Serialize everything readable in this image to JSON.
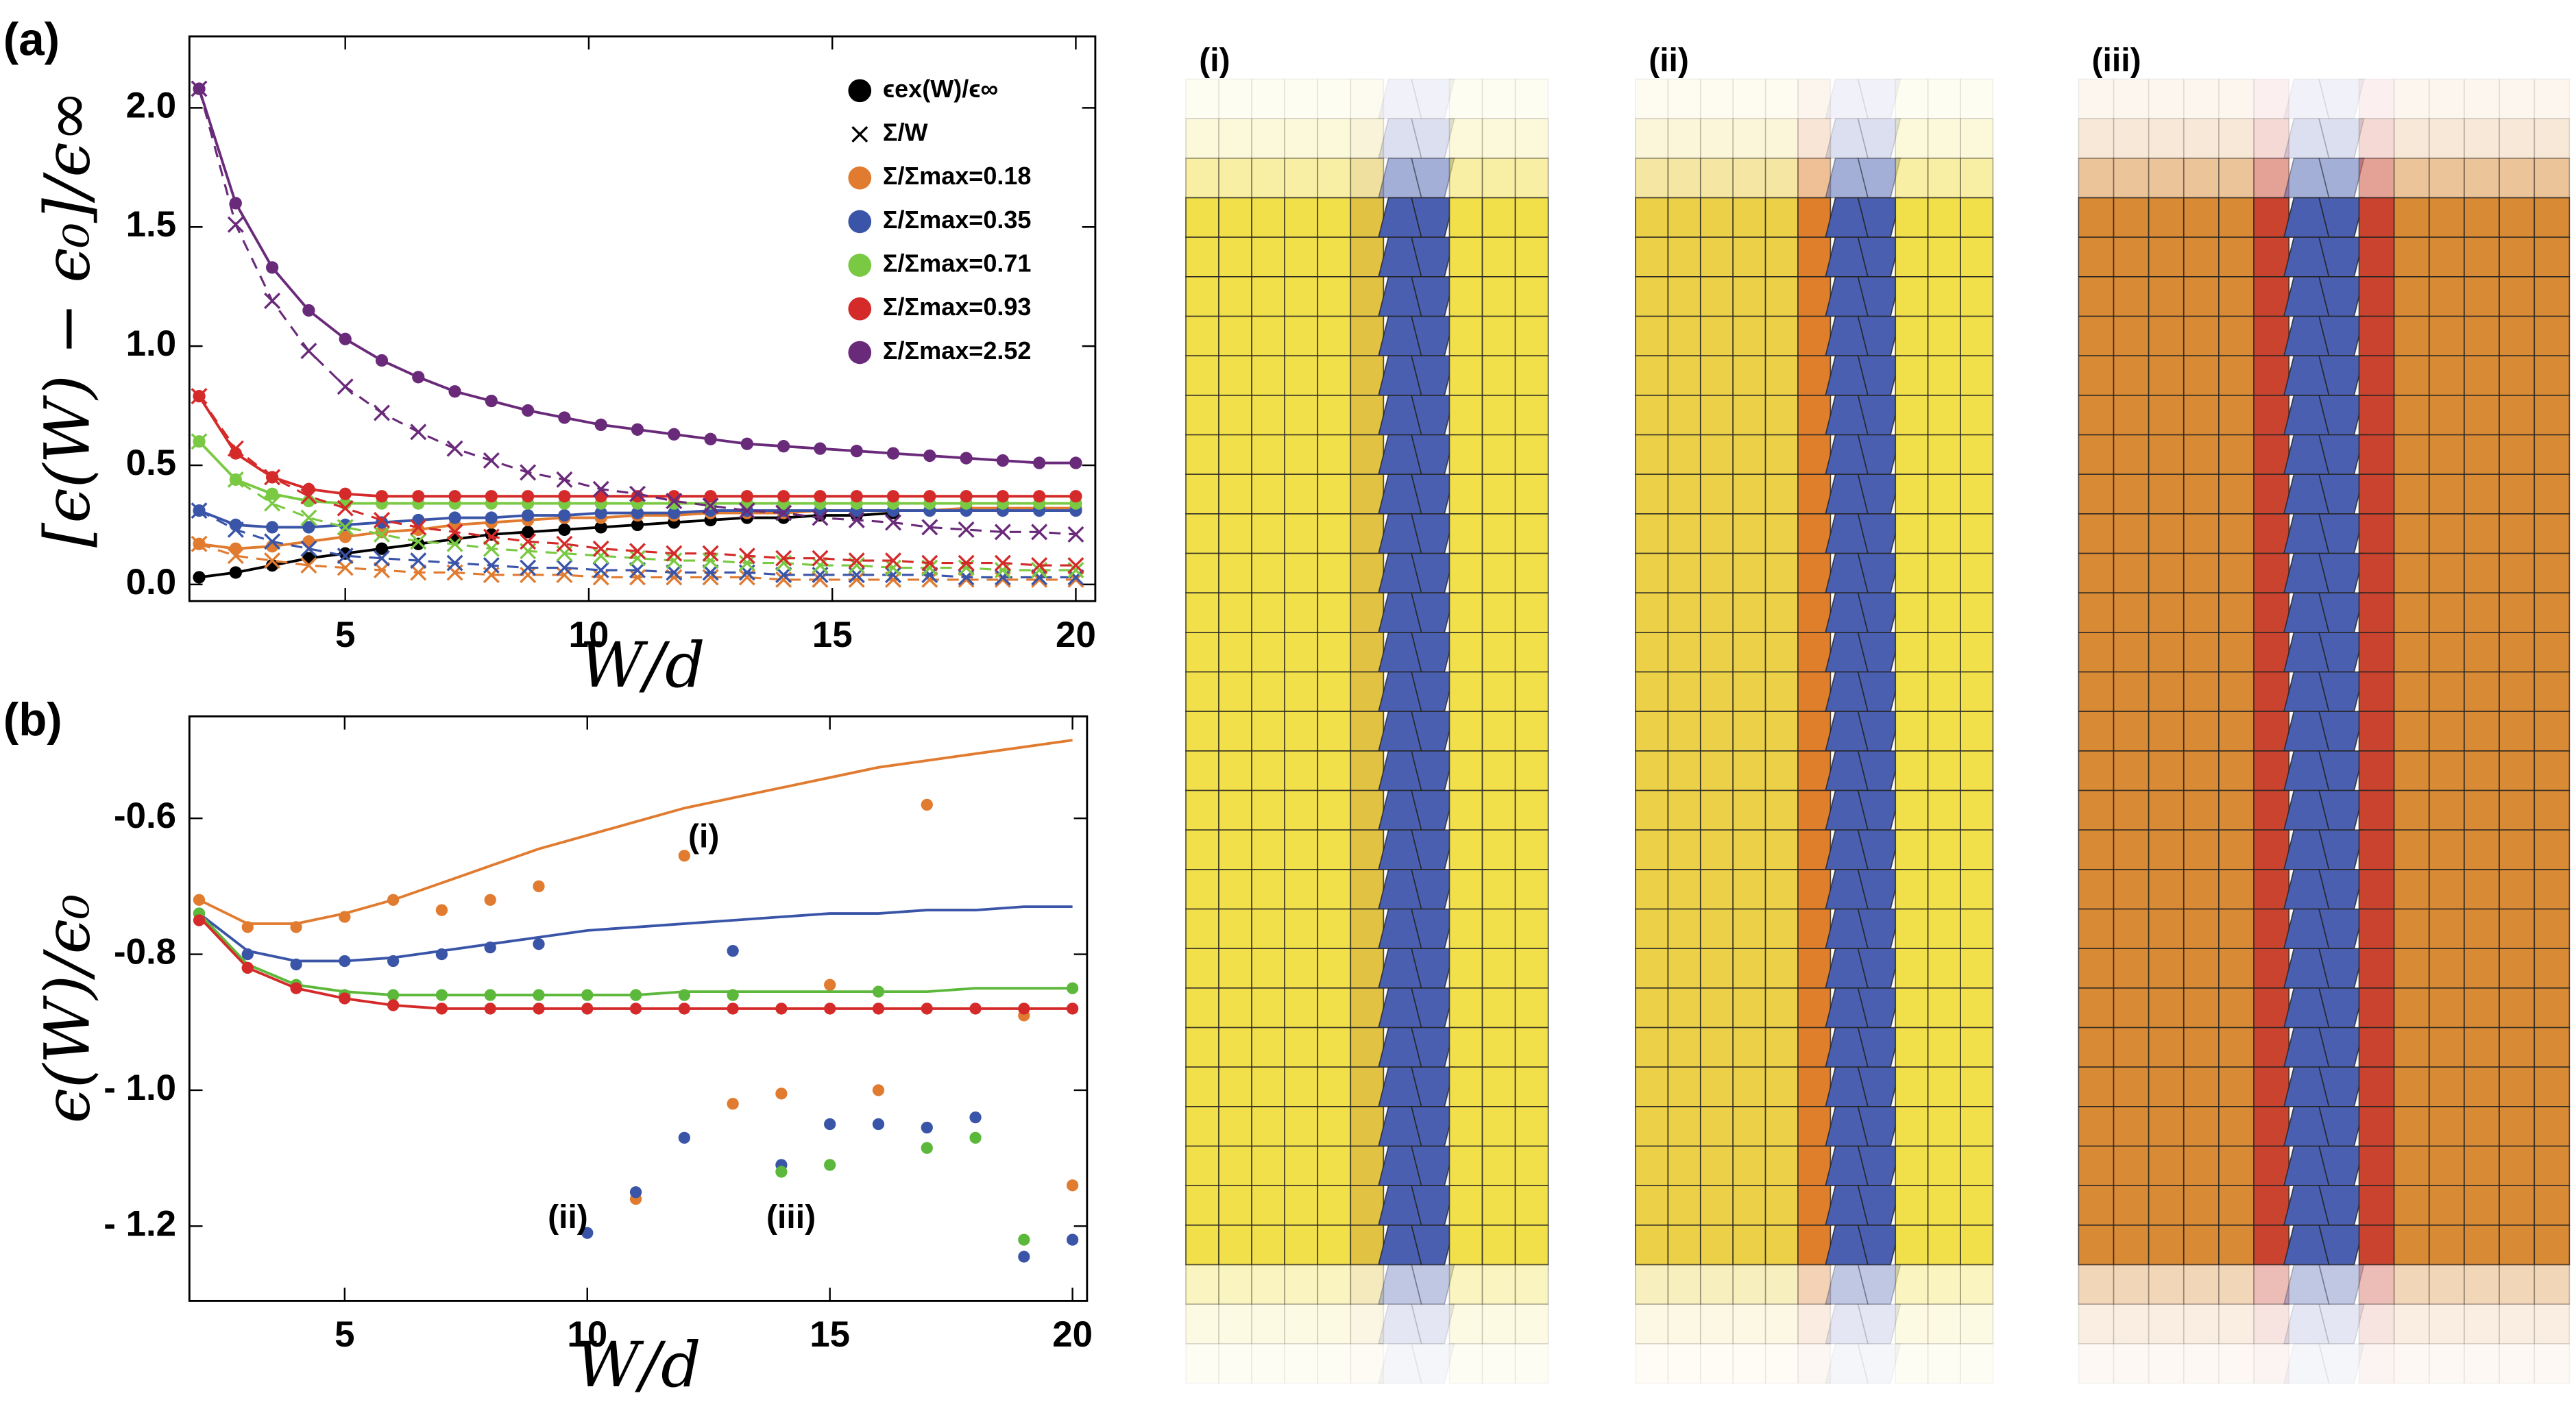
{
  "chart_data": [
    {
      "type": "line",
      "panel_label": "(a)",
      "xlabel": "W/d",
      "ylabel": "[ϵ(W) − ϵ₀]/ϵ∞",
      "cross_legend": "Σ/W",
      "x": [
        2,
        2.75,
        3.5,
        4.25,
        5,
        5.75,
        6.5,
        7.25,
        8,
        8.75,
        9.5,
        10.25,
        11,
        11.75,
        12.5,
        13.25,
        14,
        14.75,
        15.5,
        16.25,
        17,
        17.75,
        18.5,
        19.25,
        20
      ],
      "xlim": [
        1.8,
        20.4
      ],
      "ylim": [
        -0.07,
        2.3
      ],
      "xticks": [
        5,
        10,
        15,
        20
      ],
      "yticks": [
        {
          "value": 0,
          "label": "0.0"
        },
        0.5,
        {
          "value": 1,
          "label": "1.0"
        },
        1.5,
        {
          "value": 2,
          "label": "2.0"
        }
      ],
      "series": [
        {
          "name": "ϵex(W)/ϵ∞",
          "color": "#000000",
          "values": [
            0.03,
            0.05,
            0.08,
            0.11,
            0.13,
            0.15,
            0.17,
            0.19,
            0.21,
            0.22,
            0.23,
            0.24,
            0.25,
            0.26,
            0.27,
            0.28,
            0.28,
            0.29,
            0.29,
            0.3,
            null,
            null,
            null,
            null,
            null
          ]
        },
        {
          "name": "Σ/Σmax=0.18",
          "color": "#e07b30",
          "values": [
            0.17,
            0.15,
            0.16,
            0.18,
            0.2,
            0.22,
            0.23,
            0.25,
            0.26,
            0.27,
            0.28,
            0.28,
            0.29,
            0.29,
            0.3,
            0.3,
            0.3,
            0.31,
            0.31,
            0.31,
            0.31,
            0.32,
            0.32,
            0.32,
            0.32
          ],
          "sigma_w": [
            0.17,
            0.12,
            0.1,
            0.08,
            0.07,
            0.06,
            0.05,
            0.05,
            0.04,
            0.04,
            0.04,
            0.03,
            0.03,
            0.03,
            0.03,
            0.03,
            0.02,
            0.02,
            0.02,
            0.02,
            0.02,
            0.02,
            0.02,
            0.02,
            0.02
          ]
        },
        {
          "name": "Σ/Σmax=0.35",
          "color": "#3a55a8",
          "values": [
            0.31,
            0.25,
            0.24,
            0.24,
            0.25,
            0.26,
            0.27,
            0.28,
            0.28,
            0.29,
            0.29,
            0.3,
            0.3,
            0.3,
            0.31,
            0.31,
            0.31,
            0.31,
            0.31,
            0.31,
            0.31,
            0.31,
            0.31,
            0.31,
            0.31
          ],
          "sigma_w": [
            0.31,
            0.23,
            0.18,
            0.15,
            0.12,
            0.11,
            0.1,
            0.09,
            0.08,
            0.07,
            0.07,
            0.06,
            0.06,
            0.05,
            0.05,
            0.05,
            0.04,
            0.04,
            0.04,
            0.04,
            0.04,
            0.03,
            0.03,
            0.03,
            0.03
          ]
        },
        {
          "name": "Σ/Σmax=0.71",
          "color": "#7ac943",
          "values": [
            0.6,
            0.44,
            0.38,
            0.35,
            0.34,
            0.34,
            0.34,
            0.34,
            0.34,
            0.34,
            0.34,
            0.34,
            0.34,
            0.34,
            0.34,
            0.34,
            0.34,
            0.34,
            0.34,
            0.34,
            0.34,
            0.34,
            0.34,
            0.34,
            0.34
          ],
          "sigma_w": [
            0.6,
            0.44,
            0.34,
            0.28,
            0.24,
            0.21,
            0.18,
            0.17,
            0.15,
            0.14,
            0.13,
            0.12,
            0.11,
            0.1,
            0.1,
            0.09,
            0.09,
            0.08,
            0.08,
            0.07,
            0.07,
            0.07,
            0.06,
            0.06,
            0.06
          ]
        },
        {
          "name": "Σ/Σmax=0.93",
          "color": "#d42a2a",
          "values": [
            0.79,
            0.55,
            0.45,
            0.4,
            0.38,
            0.37,
            0.37,
            0.37,
            0.37,
            0.37,
            0.37,
            0.37,
            0.37,
            0.37,
            0.37,
            0.37,
            0.37,
            0.37,
            0.37,
            0.37,
            0.37,
            0.37,
            0.37,
            0.37,
            0.37
          ],
          "sigma_w": [
            0.79,
            0.57,
            0.45,
            0.37,
            0.32,
            0.27,
            0.24,
            0.22,
            0.2,
            0.18,
            0.17,
            0.15,
            0.14,
            0.13,
            0.13,
            0.12,
            0.11,
            0.11,
            0.1,
            0.1,
            0.09,
            0.09,
            0.09,
            0.08,
            0.08
          ]
        },
        {
          "name": "Σ/Σmax=2.52",
          "color": "#6a2a7a",
          "values": [
            2.08,
            1.6,
            1.33,
            1.15,
            1.03,
            0.94,
            0.87,
            0.81,
            0.77,
            0.73,
            0.7,
            0.67,
            0.65,
            0.63,
            0.61,
            0.59,
            0.58,
            0.57,
            0.56,
            0.55,
            0.54,
            0.53,
            0.52,
            0.51,
            0.51
          ],
          "sigma_w": [
            2.08,
            1.51,
            1.19,
            0.98,
            0.83,
            0.72,
            0.64,
            0.57,
            0.52,
            0.47,
            0.44,
            0.4,
            0.38,
            0.35,
            0.33,
            0.31,
            0.3,
            0.28,
            0.27,
            0.26,
            0.24,
            0.23,
            0.22,
            0.22,
            0.21
          ]
        }
      ]
    },
    {
      "type": "scatter",
      "panel_label": "(b)",
      "xlabel": "W/d",
      "ylabel": "ϵ(W)/ϵ₀",
      "x": [
        2,
        3,
        4,
        5,
        6,
        7,
        8,
        9,
        10,
        11,
        12,
        13,
        14,
        15,
        16,
        17,
        18,
        19,
        20
      ],
      "xlim": [
        1.8,
        20.3
      ],
      "ylim": [
        -1.31,
        -0.45
      ],
      "xticks": [
        5,
        10,
        15,
        20
      ],
      "yticks": [
        -0.6,
        -0.8,
        {
          "value": -1,
          "label": "- 1.0"
        },
        {
          "value": -1.2,
          "label": "- 1.2"
        }
      ],
      "series": [
        {
          "color": "#e07b30",
          "values": [
            -0.72,
            -0.76,
            -0.76,
            -0.745,
            -0.72,
            -0.735,
            -0.72,
            -0.7,
            null,
            -1.16,
            -0.655,
            -1.02,
            -1.005,
            -0.845,
            -1.0,
            -0.58,
            null,
            -0.89,
            -1.14
          ],
          "fit": [
            -0.72,
            -0.755,
            -0.755,
            -0.74,
            -0.72,
            -0.695,
            -0.67,
            -0.645,
            -0.625,
            -0.605,
            -0.585,
            -0.57,
            -0.555,
            -0.54,
            -0.525,
            -0.515,
            -0.505,
            -0.495,
            -0.485
          ]
        },
        {
          "color": "#3a55a8",
          "values": [
            -0.74,
            -0.8,
            -0.815,
            -0.81,
            -0.81,
            -0.8,
            -0.79,
            -0.785,
            -1.21,
            -1.15,
            -1.07,
            -0.795,
            -1.11,
            -1.05,
            -1.05,
            -1.055,
            -1.04,
            -1.245,
            -1.22
          ],
          "fit": [
            -0.74,
            -0.795,
            -0.81,
            -0.81,
            -0.805,
            -0.795,
            -0.785,
            -0.775,
            -0.765,
            -0.76,
            -0.755,
            -0.75,
            -0.745,
            -0.74,
            -0.74,
            -0.735,
            -0.735,
            -0.73,
            -0.73
          ]
        },
        {
          "color": "#5cb83a",
          "values": [
            -0.74,
            -0.82,
            -0.845,
            -0.86,
            -0.86,
            -0.86,
            -0.86,
            -0.86,
            -0.86,
            -0.86,
            -0.86,
            -0.86,
            -1.12,
            -1.11,
            -0.855,
            -1.085,
            -1.07,
            -1.22,
            -0.85
          ],
          "fit": [
            -0.74,
            -0.815,
            -0.845,
            -0.855,
            -0.86,
            -0.86,
            -0.86,
            -0.86,
            -0.86,
            -0.86,
            -0.855,
            -0.855,
            -0.855,
            -0.855,
            -0.855,
            -0.855,
            -0.85,
            -0.85,
            -0.85
          ]
        },
        {
          "color": "#d42a2a",
          "values": [
            -0.75,
            -0.82,
            -0.85,
            -0.865,
            -0.875,
            -0.88,
            -0.88,
            -0.88,
            -0.88,
            -0.88,
            -0.88,
            -0.88,
            -0.88,
            -0.88,
            -0.88,
            -0.88,
            -0.88,
            -0.88,
            -0.88
          ],
          "fit": [
            -0.745,
            -0.82,
            -0.85,
            -0.865,
            -0.875,
            -0.88,
            -0.88,
            -0.88,
            -0.88,
            -0.88,
            -0.88,
            -0.88,
            -0.88,
            -0.88,
            -0.88,
            -0.88,
            -0.88,
            -0.88,
            -0.88
          ]
        }
      ],
      "annotations": [
        {
          "text": "(i)",
          "x": 12.4,
          "y": -0.63
        },
        {
          "text": "(ii)",
          "x": 9.6,
          "y": -1.19
        },
        {
          "text": "(iii)",
          "x": 14.2,
          "y": -1.19
        }
      ]
    }
  ],
  "panels": [
    {
      "label": "(i)"
    },
    {
      "label": "(ii)"
    },
    {
      "label": "(iii)"
    }
  ]
}
